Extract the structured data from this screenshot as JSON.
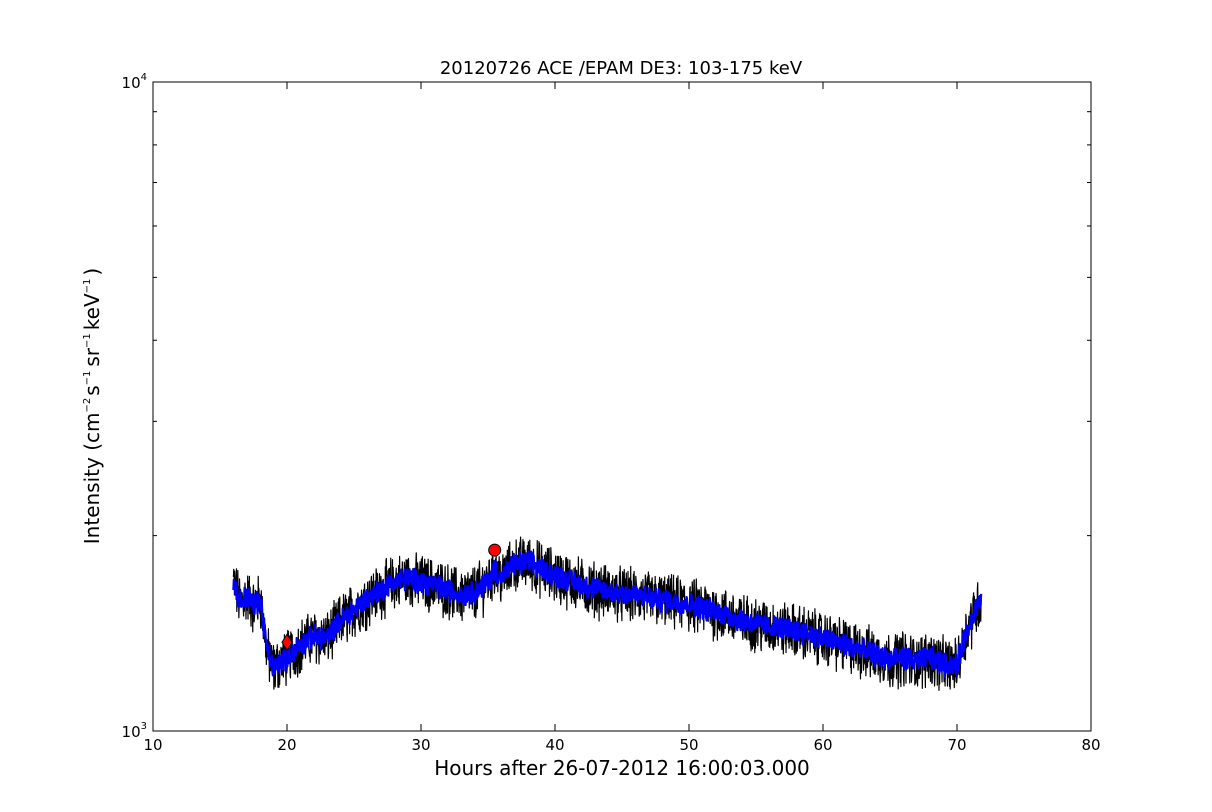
{
  "chart_data": {
    "type": "line",
    "title": "20120726 ACE /EPAM DE3: 103-175 keV",
    "xlabel": "Hours after 26-07-2012 16:00:03.000",
    "ylabel": {
      "prefix": "Intensity (cm",
      "exp1": "−2",
      "mid1": "s",
      "exp2": "−1",
      "mid2": "sr",
      "exp3": "−1",
      "mid3": "keV",
      "exp4": "−1",
      "suffix": ")"
    },
    "xlim": [
      10,
      80
    ],
    "ylim": [
      1000,
      10000
    ],
    "yscale": "log",
    "grid": false,
    "xticks": [
      {
        "value": 10,
        "label": "10"
      },
      {
        "value": 20,
        "label": "20"
      },
      {
        "value": 30,
        "label": "30"
      },
      {
        "value": 40,
        "label": "40"
      },
      {
        "value": 50,
        "label": "50"
      },
      {
        "value": 60,
        "label": "60"
      },
      {
        "value": 70,
        "label": "70"
      },
      {
        "value": 80,
        "label": "80"
      }
    ],
    "yticks": [
      {
        "value": 1000,
        "base": "10",
        "exp": "3"
      },
      {
        "value": 10000,
        "base": "10",
        "exp": "4"
      }
    ],
    "yminor_ticks": [
      2000,
      3000,
      4000,
      5000,
      6000,
      7000,
      8000,
      9000
    ],
    "series": [
      {
        "style": "raw-noisy",
        "color": "#000000",
        "x": [
          16.0,
          16.5,
          17.0,
          17.5,
          18.0,
          18.5,
          19.0,
          19.5,
          20.0,
          21.0,
          22.0,
          23.0,
          24.0,
          25.0,
          26.0,
          27.0,
          28.0,
          29.0,
          30.0,
          31.0,
          32.0,
          33.0,
          34.0,
          35.0,
          35.5,
          36.0,
          37.0,
          38.0,
          39.0,
          40.0,
          42.0,
          44.0,
          46.0,
          48.0,
          50.0,
          52.0,
          54.0,
          56.0,
          58.0,
          60.0,
          62.0,
          64.0,
          65.0,
          66.0,
          67.0,
          68.0,
          69.0,
          70.0,
          70.5,
          71.0,
          71.5,
          71.8
        ],
        "y": [
          1700,
          1580,
          1620,
          1560,
          1600,
          1330,
          1250,
          1280,
          1300,
          1360,
          1400,
          1390,
          1480,
          1540,
          1600,
          1650,
          1700,
          1720,
          1700,
          1680,
          1650,
          1620,
          1640,
          1700,
          1780,
          1720,
          1810,
          1820,
          1780,
          1740,
          1680,
          1640,
          1620,
          1590,
          1570,
          1530,
          1480,
          1450,
          1430,
          1390,
          1350,
          1310,
          1290,
          1300,
          1280,
          1300,
          1270,
          1260,
          1380,
          1480,
          1560,
          1580
        ]
      },
      {
        "style": "smoothed",
        "color": "#0000ff",
        "x": [
          16.0,
          16.5,
          17.0,
          17.5,
          18.0,
          18.5,
          19.0,
          19.5,
          20.0,
          21.0,
          22.0,
          23.0,
          24.0,
          25.0,
          26.0,
          27.0,
          28.0,
          29.0,
          30.0,
          31.0,
          32.0,
          33.0,
          34.0,
          35.0,
          35.5,
          36.0,
          37.0,
          38.0,
          39.0,
          40.0,
          42.0,
          44.0,
          46.0,
          48.0,
          50.0,
          52.0,
          54.0,
          56.0,
          58.0,
          60.0,
          62.0,
          64.0,
          65.0,
          66.0,
          67.0,
          68.0,
          69.0,
          70.0,
          70.5,
          71.0,
          71.5,
          71.8
        ],
        "y": [
          1700,
          1580,
          1620,
          1560,
          1600,
          1330,
          1250,
          1280,
          1300,
          1360,
          1400,
          1390,
          1480,
          1540,
          1600,
          1650,
          1700,
          1720,
          1700,
          1680,
          1650,
          1620,
          1640,
          1700,
          1780,
          1720,
          1810,
          1820,
          1780,
          1740,
          1680,
          1640,
          1620,
          1590,
          1570,
          1530,
          1480,
          1450,
          1430,
          1390,
          1350,
          1310,
          1290,
          1300,
          1280,
          1300,
          1270,
          1260,
          1380,
          1480,
          1560,
          1580
        ]
      }
    ],
    "markers": [
      {
        "shape": "circle",
        "color": "#ff0000",
        "x": 35.5,
        "y": 1900
      },
      {
        "shape": "diamond",
        "color": "#ff0000",
        "x": 20.0,
        "y": 1370
      }
    ]
  }
}
